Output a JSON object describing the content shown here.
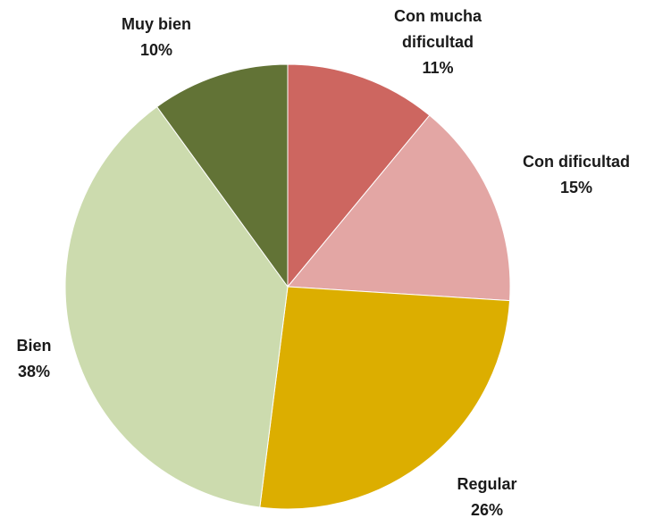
{
  "chart_data": {
    "type": "pie",
    "categories": [
      "Con mucha dificultad",
      "Con dificultad",
      "Regular",
      "Bien",
      "Muy bien"
    ],
    "values": [
      11,
      15,
      26,
      38,
      10
    ],
    "value_labels": [
      "11%",
      "15%",
      "26%",
      "38%",
      "10%"
    ],
    "colors": [
      "#cd6660",
      "#e3a6a4",
      "#dcae00",
      "#ccdbae",
      "#627336"
    ]
  }
}
